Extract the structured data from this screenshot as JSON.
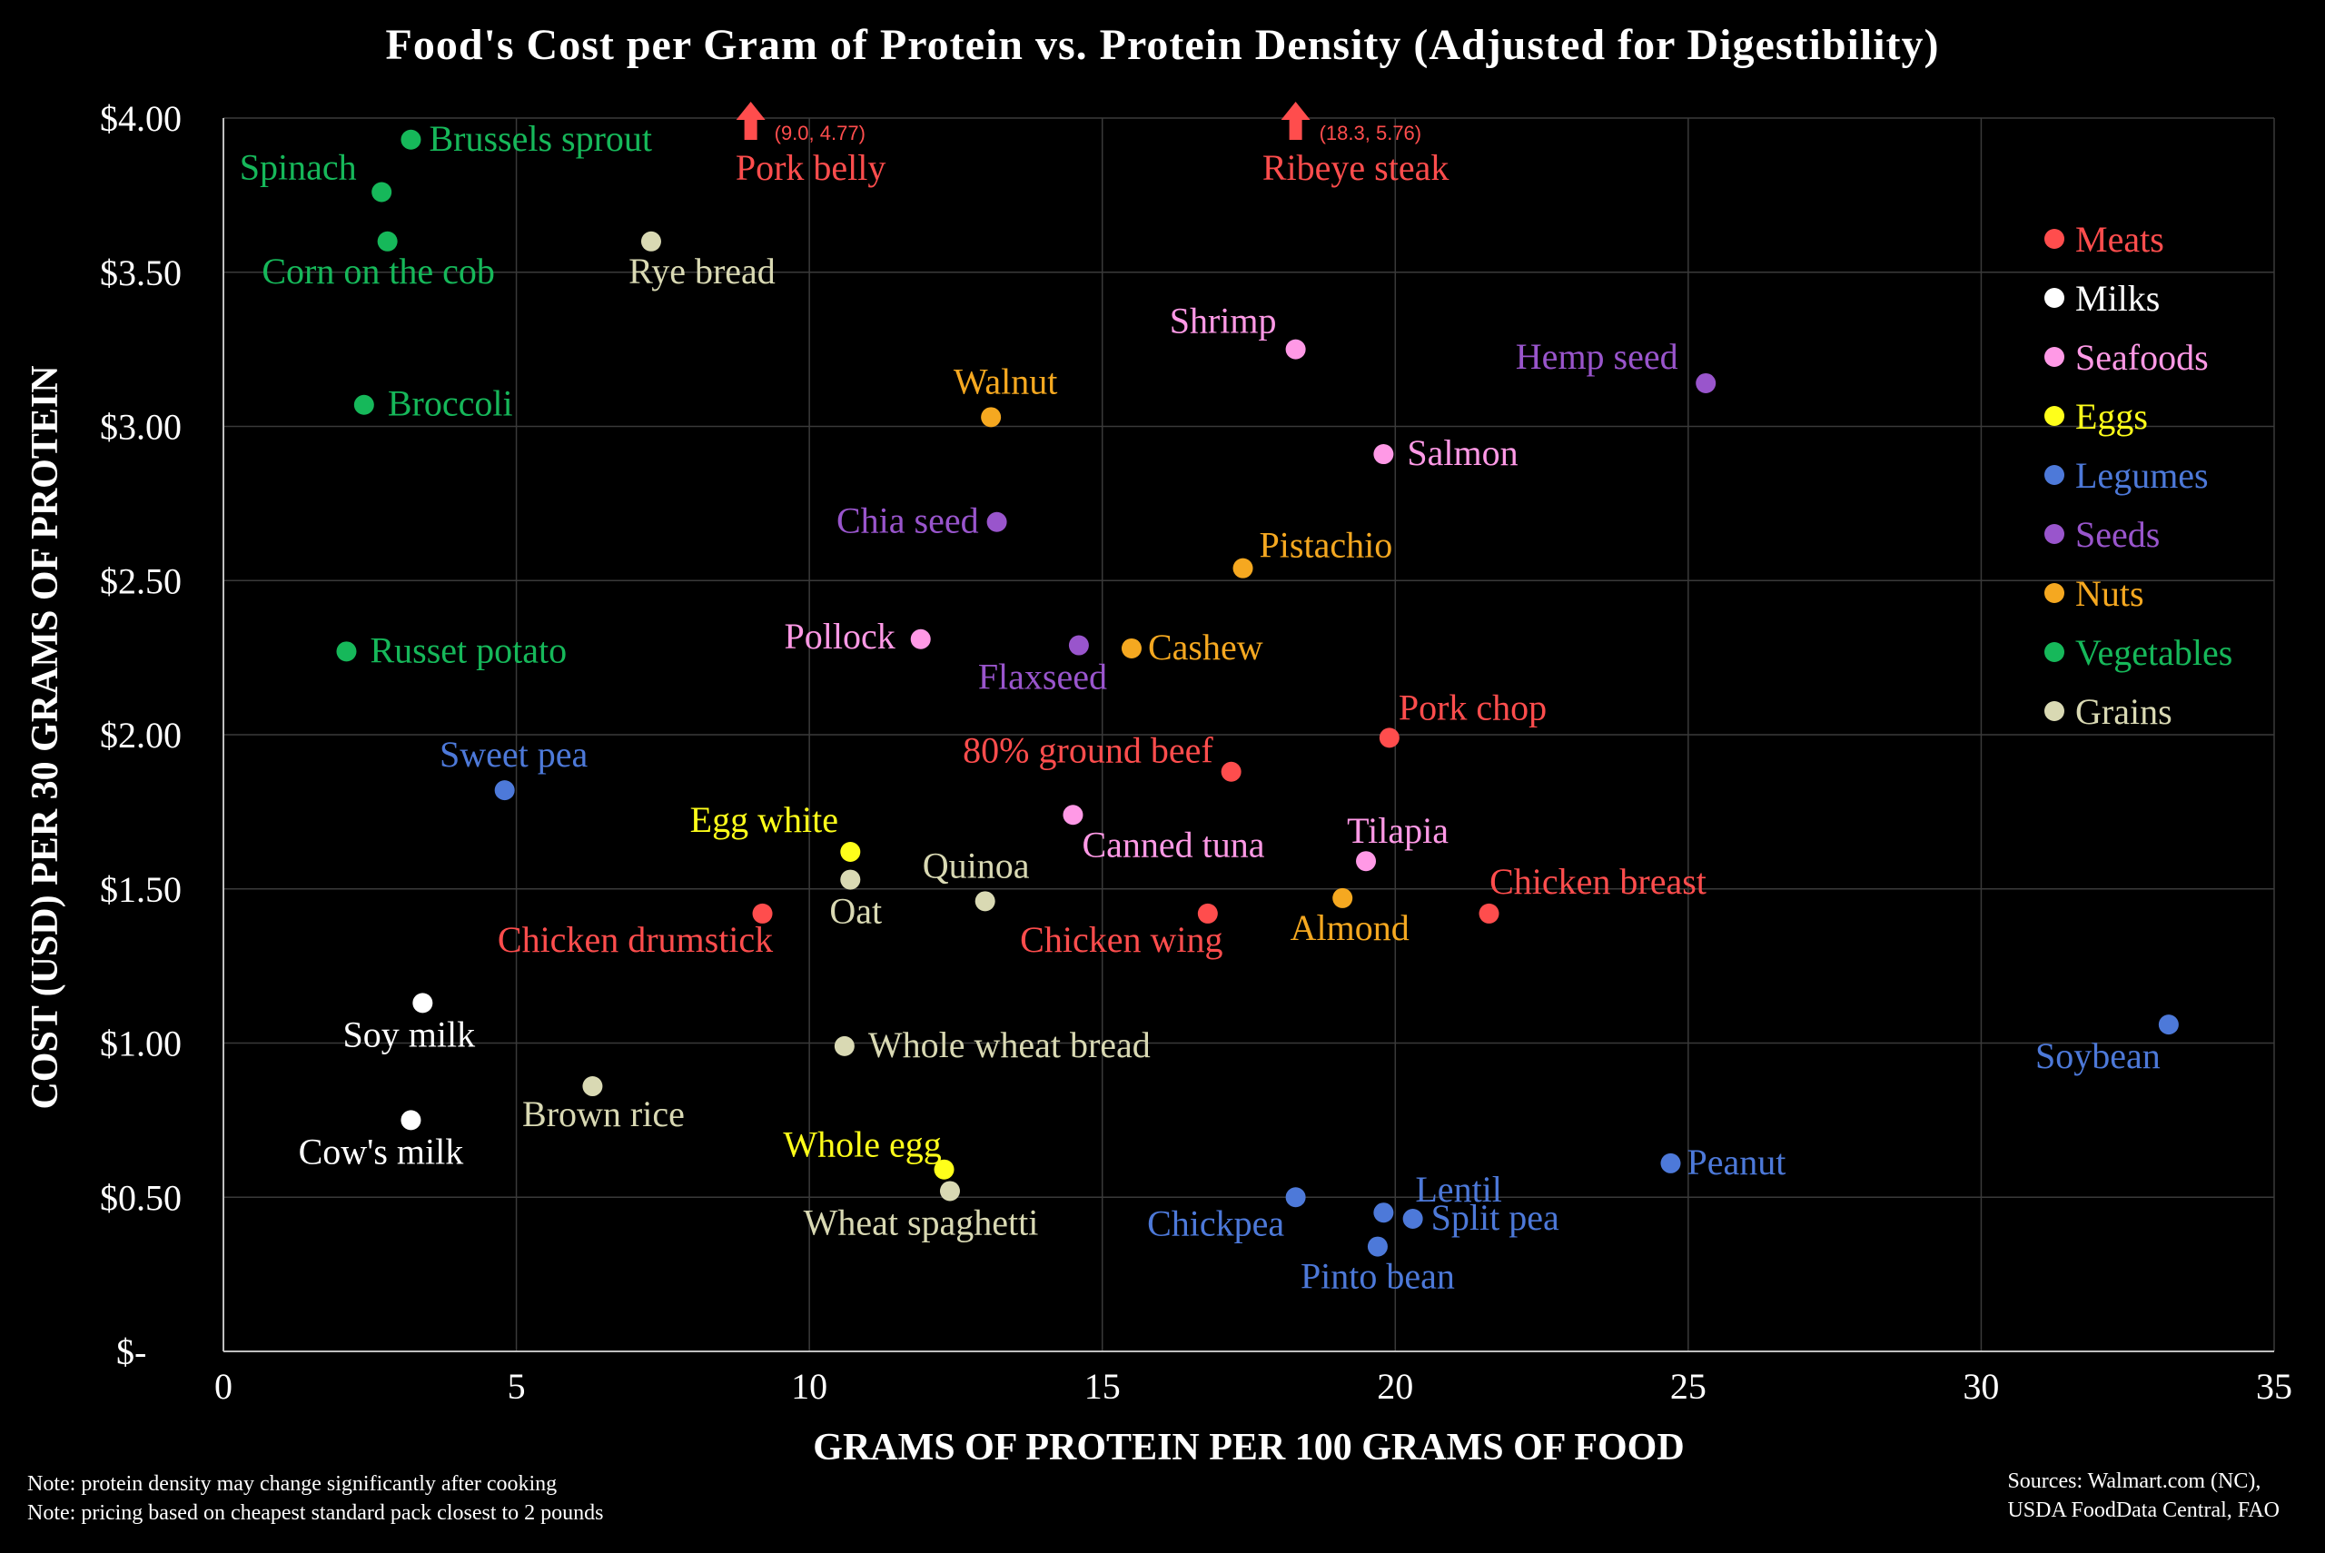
{
  "chart_data": {
    "type": "scatter",
    "title": "Food's Cost per Gram of Protein vs. Protein Density (Adjusted for Digestibility)",
    "xlabel": "GRAMS OF PROTEIN PER 100 GRAMS OF FOOD",
    "ylabel": "COST (USD) PER 30 GRAMS OF PROTEIN",
    "xlim": [
      0,
      35
    ],
    "ylim": [
      0,
      4
    ],
    "x_ticks": [
      "0",
      "5",
      "10",
      "15",
      "20",
      "25",
      "30",
      "35"
    ],
    "y_ticks": [
      "$-",
      "$0.50",
      "$1.00",
      "$1.50",
      "$2.00",
      "$2.50",
      "$3.00",
      "$3.50",
      "$4.00"
    ],
    "grid": true,
    "legend_position": "right",
    "series": [
      {
        "name": "Meats",
        "color": "#ff4d4d",
        "points": [
          {
            "label": "Chicken drumstick",
            "x": 9.2,
            "y": 1.42
          },
          {
            "label": "80% ground beef",
            "x": 17.2,
            "y": 1.88
          },
          {
            "label": "Pork chop",
            "x": 19.9,
            "y": 1.99
          },
          {
            "label": "Chicken wing",
            "x": 16.8,
            "y": 1.42
          },
          {
            "label": "Chicken breast",
            "x": 21.6,
            "y": 1.42
          }
        ]
      },
      {
        "name": "Milks",
        "color": "#ffffff",
        "points": [
          {
            "label": "Soy milk",
            "x": 3.4,
            "y": 1.13
          },
          {
            "label": "Cow's milk",
            "x": 3.2,
            "y": 0.75
          }
        ]
      },
      {
        "name": "Seafoods",
        "color": "#ff99e6",
        "points": [
          {
            "label": "Shrimp",
            "x": 18.3,
            "y": 3.25
          },
          {
            "label": "Salmon",
            "x": 19.8,
            "y": 2.91
          },
          {
            "label": "Pollock",
            "x": 11.9,
            "y": 2.31
          },
          {
            "label": "Canned tuna",
            "x": 14.5,
            "y": 1.74
          },
          {
            "label": "Tilapia",
            "x": 19.5,
            "y": 1.59
          }
        ]
      },
      {
        "name": "Eggs",
        "color": "#ffff1a",
        "points": [
          {
            "label": "Egg white",
            "x": 10.7,
            "y": 1.62
          },
          {
            "label": "Whole egg",
            "x": 12.3,
            "y": 0.59
          }
        ]
      },
      {
        "name": "Legumes",
        "color": "#4d79d9",
        "points": [
          {
            "label": "Sweet pea",
            "x": 4.8,
            "y": 1.82
          },
          {
            "label": "Soybean",
            "x": 33.2,
            "y": 1.06
          },
          {
            "label": "Peanut",
            "x": 24.7,
            "y": 0.61
          },
          {
            "label": "Chickpea",
            "x": 18.3,
            "y": 0.5
          },
          {
            "label": "Lentil",
            "x": 19.8,
            "y": 0.45
          },
          {
            "label": "Split pea",
            "x": 20.3,
            "y": 0.43
          },
          {
            "label": "Pinto bean",
            "x": 19.7,
            "y": 0.34
          }
        ]
      },
      {
        "name": "Seeds",
        "color": "#9955cc",
        "points": [
          {
            "label": "Hemp seed",
            "x": 25.3,
            "y": 3.14
          },
          {
            "label": "Chia seed",
            "x": 13.2,
            "y": 2.69
          },
          {
            "label": "Flaxseed",
            "x": 14.6,
            "y": 2.29
          }
        ]
      },
      {
        "name": "Nuts",
        "color": "#f5a820",
        "points": [
          {
            "label": "Walnut",
            "x": 13.1,
            "y": 3.03
          },
          {
            "label": "Pistachio",
            "x": 17.4,
            "y": 2.54
          },
          {
            "label": "Cashew",
            "x": 15.5,
            "y": 2.28
          },
          {
            "label": "Almond",
            "x": 19.1,
            "y": 1.47
          }
        ]
      },
      {
        "name": "Vegetables",
        "color": "#16b85a",
        "points": [
          {
            "label": "Brussels sprout",
            "x": 3.2,
            "y": 3.93
          },
          {
            "label": "Spinach",
            "x": 2.7,
            "y": 3.76
          },
          {
            "label": "Corn on the cob",
            "x": 2.8,
            "y": 3.6
          },
          {
            "label": "Broccoli",
            "x": 2.4,
            "y": 3.07
          },
          {
            "label": "Russet potato",
            "x": 2.1,
            "y": 2.27
          }
        ]
      },
      {
        "name": "Grains",
        "color": "#d9d9b3",
        "points": [
          {
            "label": "Rye bread",
            "x": 7.3,
            "y": 3.6
          },
          {
            "label": "Oat",
            "x": 10.7,
            "y": 1.53
          },
          {
            "label": "Quinoa",
            "x": 13.0,
            "y": 1.46
          },
          {
            "label": "Whole wheat bread",
            "x": 10.6,
            "y": 0.99
          },
          {
            "label": "Brown rice",
            "x": 6.3,
            "y": 0.86
          },
          {
            "label": "Wheat spaghetti",
            "x": 12.4,
            "y": 0.52
          }
        ]
      }
    ],
    "off_chart_points": [
      {
        "label": "Pork belly",
        "series": "Meats",
        "x": 9.0,
        "y": 4.77,
        "annotation": "(9.0, 4.77)"
      },
      {
        "label": "Ribeye steak",
        "series": "Meats",
        "x": 18.3,
        "y": 5.76,
        "annotation": "(18.3, 5.76)"
      }
    ]
  },
  "notes": [
    "Note: protein density may change significantly after cooking",
    "Note: pricing based on cheapest standard pack closest to 2 pounds"
  ],
  "sources": [
    "Sources: Walmart.com (NC),",
    "USDA FoodData Central, FAO"
  ]
}
